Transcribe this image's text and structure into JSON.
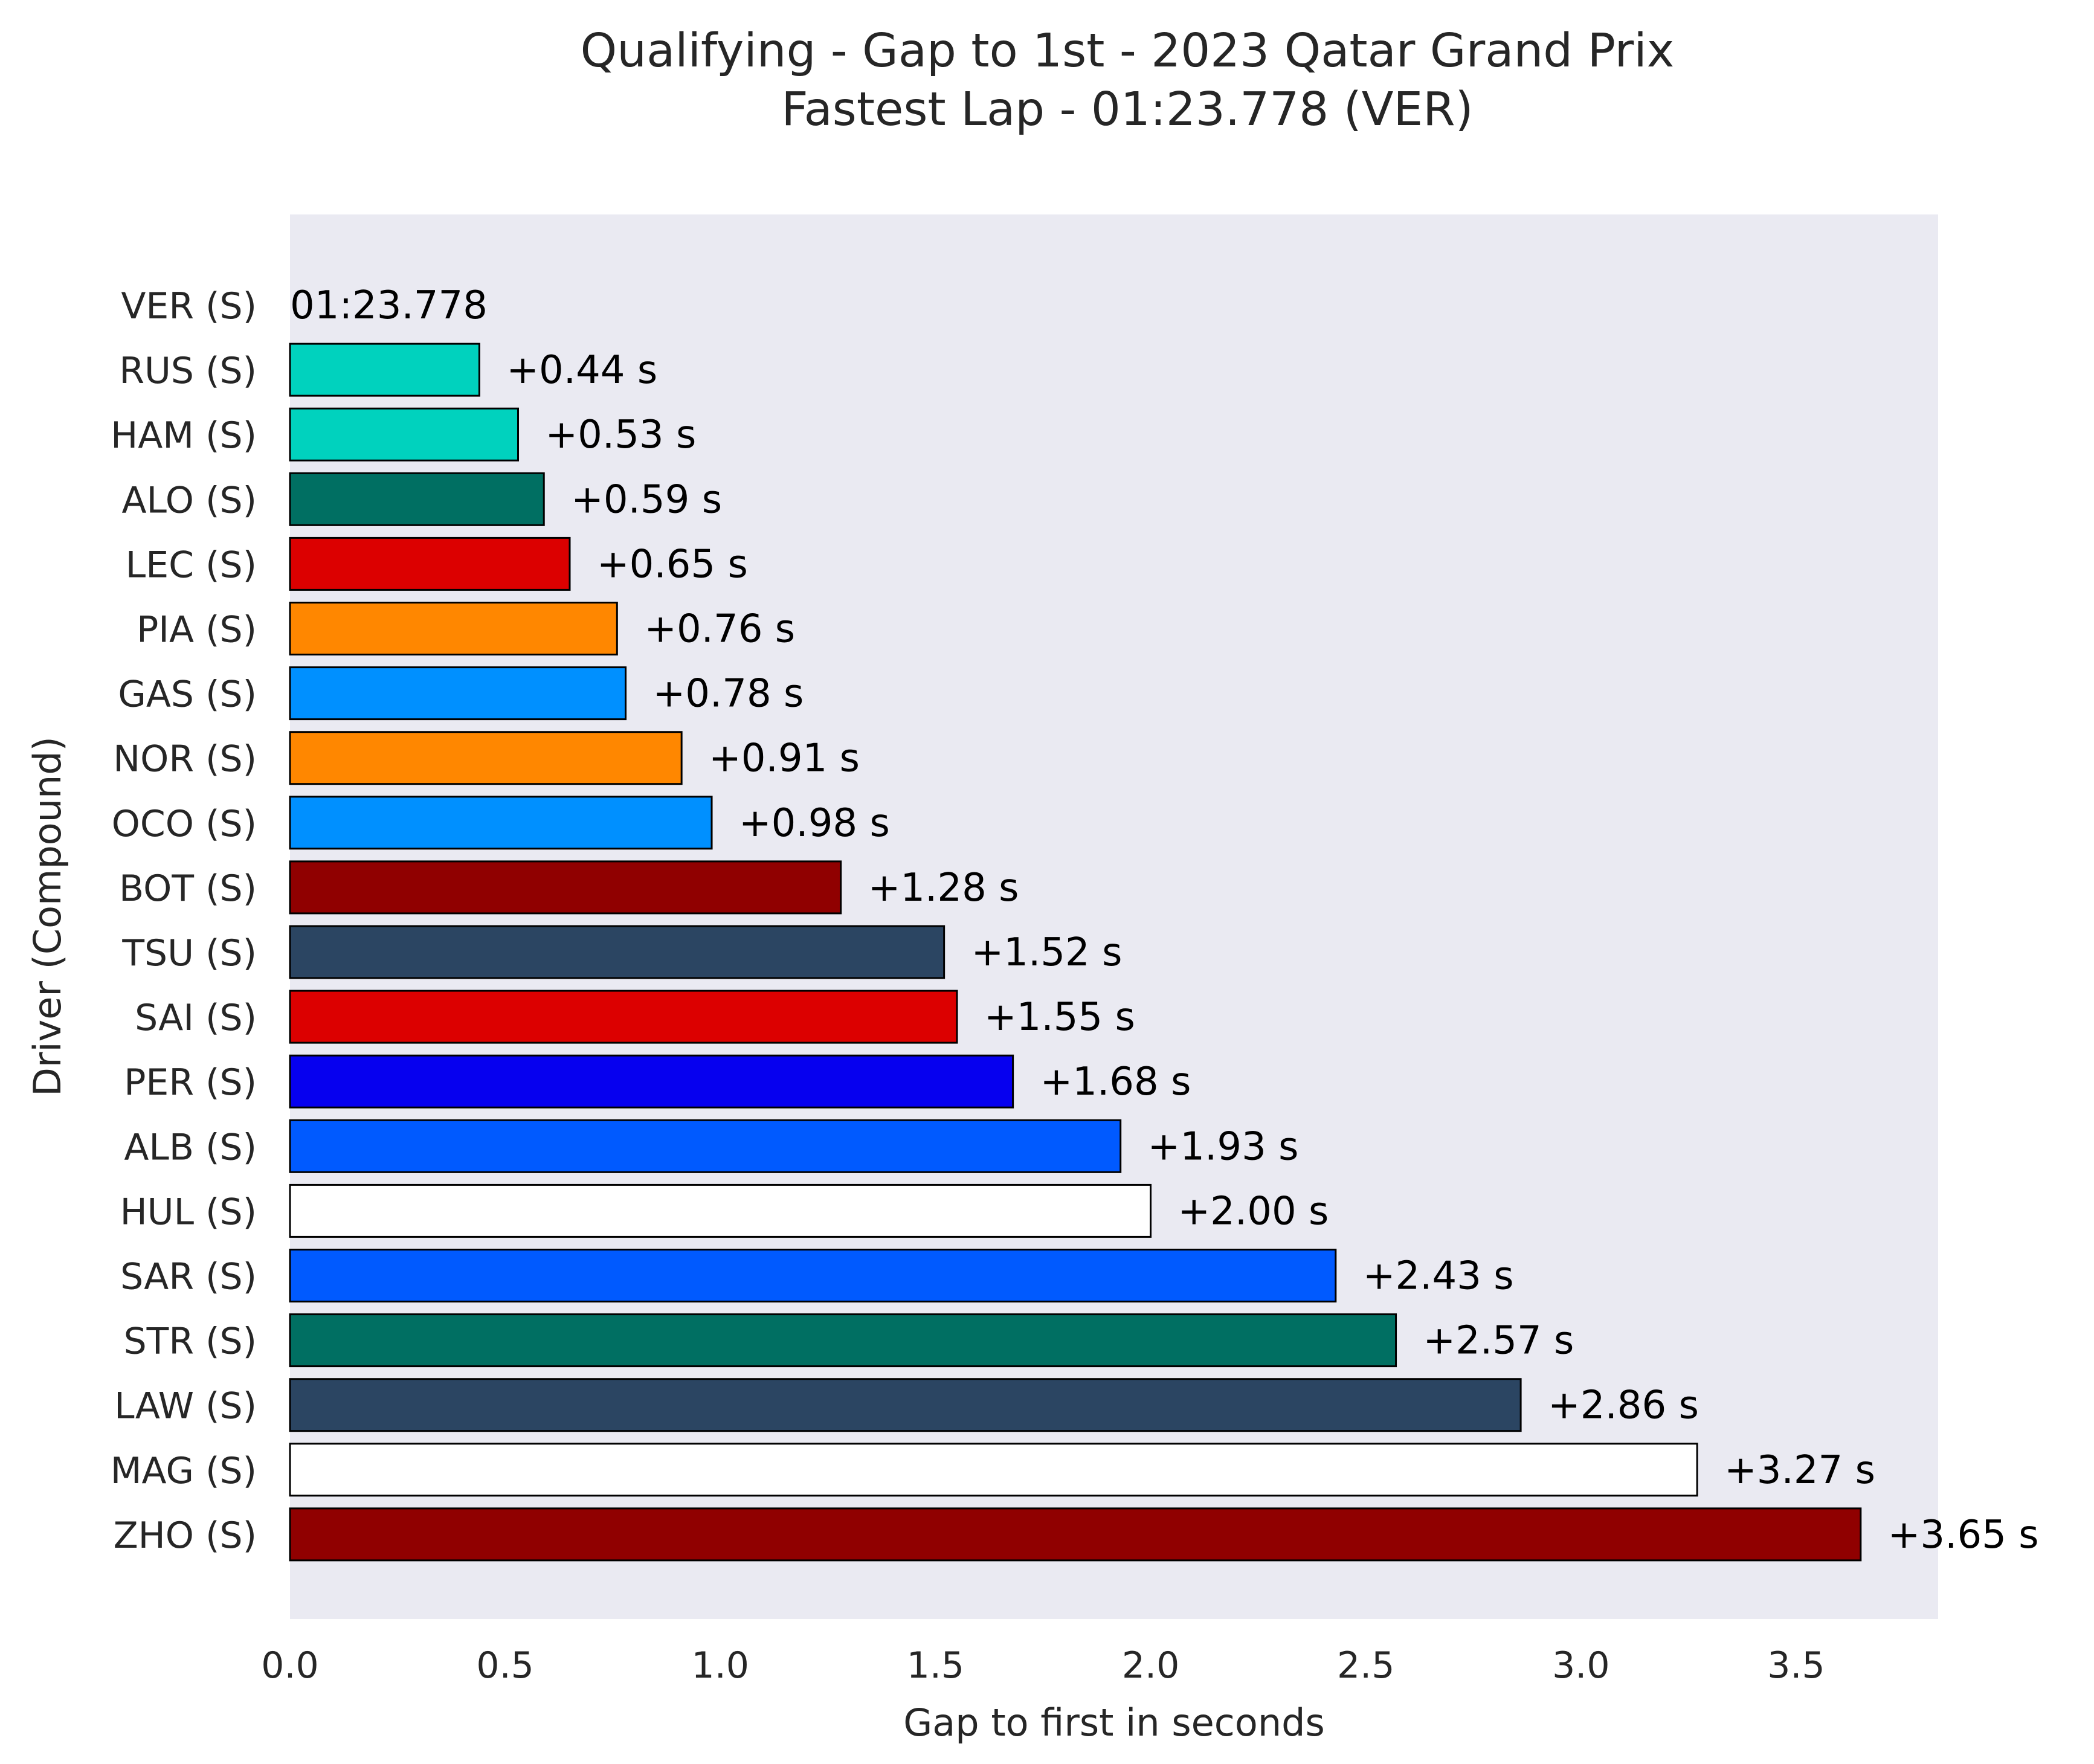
{
  "chart_data": {
    "type": "bar",
    "orientation": "horizontal",
    "title": "Qualifying - Gap to 1st - 2023 Qatar Grand Prix",
    "subtitle": "Fastest Lap - 01:23.778 (VER)",
    "xlabel": "Gap to first in seconds",
    "ylabel": "Driver (Compound)",
    "xlim": [
      0,
      3.83
    ],
    "xticks": [
      "0.0",
      "0.5",
      "1.0",
      "1.5",
      "2.0",
      "2.5",
      "3.0",
      "3.5"
    ],
    "xtick_values": [
      0,
      0.5,
      1.0,
      1.5,
      2.0,
      2.5,
      3.0,
      3.5
    ],
    "grid": false,
    "legend": "none",
    "plot_background": "#eaeaf2",
    "categories": [
      "VER (S)",
      "RUS (S)",
      "HAM (S)",
      "ALO (S)",
      "LEC (S)",
      "PIA (S)",
      "GAS (S)",
      "NOR (S)",
      "OCO (S)",
      "BOT (S)",
      "TSU (S)",
      "SAI (S)",
      "PER (S)",
      "ALB (S)",
      "HUL (S)",
      "SAR (S)",
      "STR (S)",
      "LAW (S)",
      "MAG (S)",
      "ZHO (S)"
    ],
    "values": [
      0,
      0.44,
      0.53,
      0.59,
      0.65,
      0.76,
      0.78,
      0.91,
      0.98,
      1.28,
      1.52,
      1.55,
      1.68,
      1.93,
      2.0,
      2.43,
      2.57,
      2.86,
      3.27,
      3.65
    ],
    "labels": [
      "01:23.778",
      "+0.44 s",
      "+0.53 s",
      "+0.59 s",
      "+0.65 s",
      "+0.76 s",
      "+0.78 s",
      "+0.91 s",
      "+0.98 s",
      "+1.28 s",
      "+1.52 s",
      "+1.55 s",
      "+1.68 s",
      "+1.93 s",
      "+2.00 s",
      "+2.43 s",
      "+2.57 s",
      "+2.86 s",
      "+3.27 s",
      "+3.65 s"
    ],
    "colors": [
      "#0600ef",
      "#00d2be",
      "#00d2be",
      "#006f62",
      "#dc0000",
      "#ff8700",
      "#0090ff",
      "#ff8700",
      "#0090ff",
      "#900000",
      "#2b4562",
      "#dc0000",
      "#0600ef",
      "#005aff",
      "#ffffff",
      "#005aff",
      "#006f62",
      "#2b4562",
      "#ffffff",
      "#900000"
    ]
  }
}
